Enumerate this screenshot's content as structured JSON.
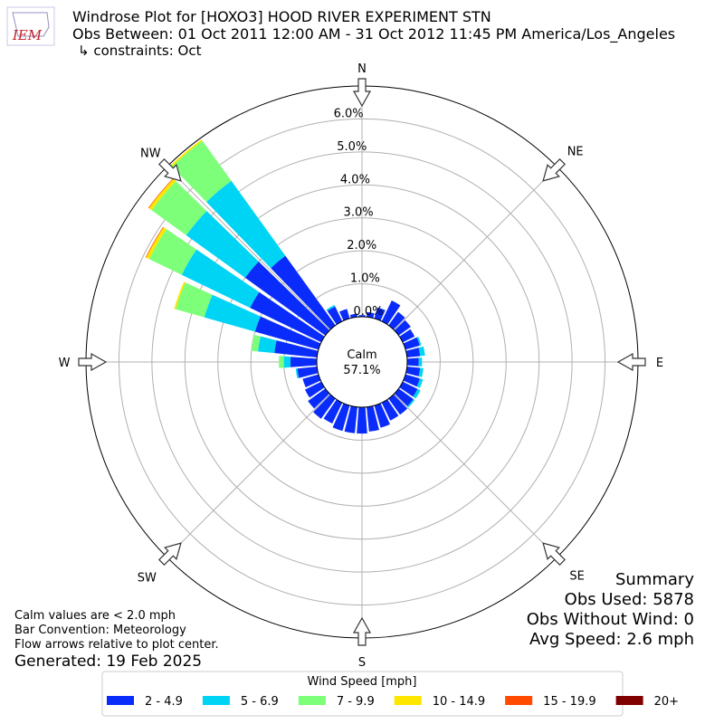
{
  "chart_data": {
    "type": "windrose",
    "title": "Windrose Plot for [HOXO3] HOOD RIVER EXPERIMENT STN",
    "subtitle": "Obs Between: 01 Oct 2011 12:00 AM - 31 Oct 2012 11:45 PM America/Los_Angeles",
    "constraints": "↳ constraints: Oct",
    "logo_text": "IEM",
    "directions": [
      0,
      10,
      20,
      30,
      40,
      50,
      60,
      70,
      80,
      90,
      100,
      110,
      120,
      130,
      140,
      150,
      160,
      170,
      180,
      190,
      200,
      210,
      220,
      230,
      240,
      250,
      260,
      270,
      280,
      290,
      300,
      310,
      320,
      330,
      340,
      350
    ],
    "compass_labels": [
      "N",
      "NE",
      "E",
      "SE",
      "S",
      "SW",
      "W",
      "NW"
    ],
    "rlim": [
      0,
      7
    ],
    "rticks": [
      {
        "value": 0,
        "label": "0.0%"
      },
      {
        "value": 1,
        "label": "1.0%"
      },
      {
        "value": 2,
        "label": "2.0%"
      },
      {
        "value": 3,
        "label": "3.0%"
      },
      {
        "value": 4,
        "label": "4.0%"
      },
      {
        "value": 5,
        "label": "5.0%"
      },
      {
        "value": 6,
        "label": "6.0%"
      }
    ],
    "grid": true,
    "calm_label": "Calm",
    "calm_value": 57.1,
    "calm_value_label": "57.1%",
    "legend_title": "Wind Speed [mph]",
    "series": [
      {
        "name": "2 - 4.9",
        "color": "#0a2cfa",
        "values": [
          0.05,
          0.15,
          0.35,
          0.7,
          0.5,
          0.45,
          0.4,
          0.45,
          0.4,
          0.35,
          0.4,
          0.45,
          0.5,
          0.55,
          0.6,
          0.6,
          0.7,
          0.75,
          0.8,
          0.8,
          0.8,
          0.7,
          0.75,
          0.65,
          0.55,
          0.5,
          0.6,
          0.8,
          1.3,
          2.0,
          2.4,
          3.0,
          2.6,
          0.5,
          0.3,
          0.1
        ]
      },
      {
        "name": "5 - 6.9",
        "color": "#00d4f5",
        "values": [
          0,
          0,
          0,
          0,
          0,
          0,
          0,
          0.05,
          0.15,
          0.1,
          0.1,
          0.1,
          0.1,
          0.05,
          0,
          0,
          0,
          0,
          0,
          0,
          0,
          0,
          0,
          0,
          0,
          0,
          0.05,
          0.2,
          0.5,
          1.6,
          2.3,
          2.2,
          2.8,
          0.05,
          0,
          0
        ]
      },
      {
        "name": "7 - 9.9",
        "color": "#7dff7a",
        "values": [
          0,
          0,
          0,
          0,
          0,
          0,
          0,
          0,
          0,
          0,
          0,
          0,
          0,
          0,
          0,
          0,
          0,
          0,
          0,
          0,
          0,
          0,
          0,
          0,
          0,
          0,
          0,
          0.15,
          0.2,
          0.9,
          1.1,
          1.3,
          1.5,
          0,
          0,
          0
        ]
      },
      {
        "name": "10 - 14.9",
        "color": "#ffe600",
        "values": [
          0,
          0,
          0,
          0,
          0,
          0,
          0,
          0,
          0,
          0,
          0,
          0,
          0,
          0,
          0,
          0,
          0,
          0,
          0,
          0,
          0,
          0,
          0,
          0,
          0,
          0,
          0,
          0,
          0,
          0.05,
          0.1,
          0.1,
          0.05,
          0,
          0,
          0
        ]
      },
      {
        "name": "15 - 19.9",
        "color": "#ff4a00",
        "values": [
          0,
          0,
          0,
          0,
          0,
          0,
          0,
          0,
          0,
          0,
          0,
          0,
          0,
          0,
          0,
          0,
          0,
          0,
          0,
          0,
          0,
          0,
          0,
          0,
          0,
          0,
          0,
          0,
          0,
          0,
          0.02,
          0.02,
          0,
          0,
          0,
          0
        ]
      },
      {
        "name": "20+",
        "color": "#800000",
        "values": [
          0,
          0,
          0,
          0,
          0,
          0,
          0,
          0,
          0,
          0,
          0,
          0,
          0,
          0,
          0,
          0,
          0,
          0,
          0,
          0,
          0,
          0,
          0,
          0,
          0,
          0,
          0,
          0,
          0,
          0,
          0,
          0,
          0,
          0,
          0,
          0
        ]
      }
    ],
    "summary": [
      "Summary",
      "Obs Used: 5878",
      "Obs Without Wind: 0",
      "Avg Speed: 2.6 mph"
    ],
    "notes": [
      "Calm values are < 2.0 mph",
      "Bar Convention: Meteorology",
      "Flow arrows relative to plot center."
    ],
    "generated": "Generated: 19 Feb 2025"
  }
}
